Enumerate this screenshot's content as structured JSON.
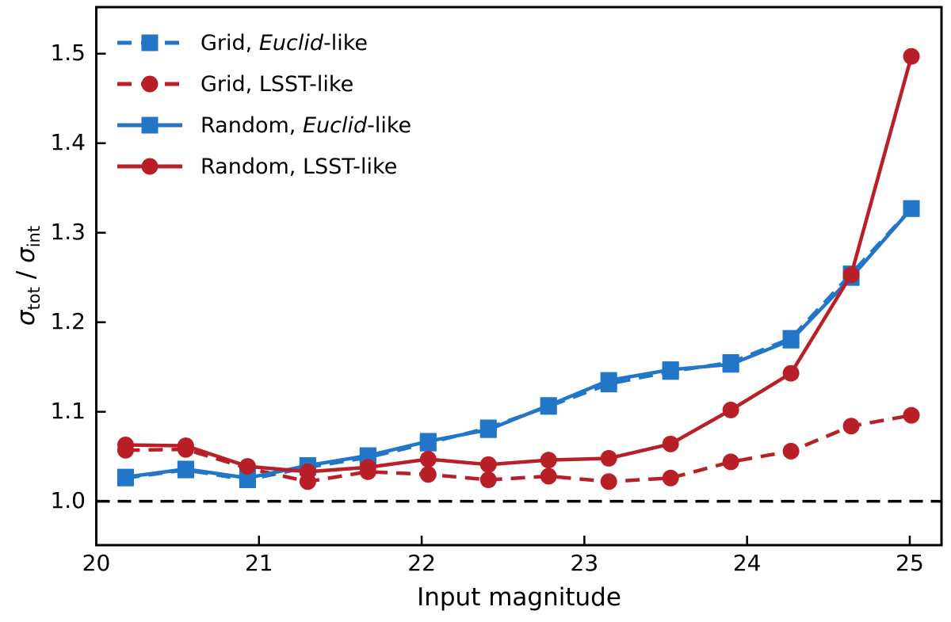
{
  "figure": {
    "background": "#ffffff",
    "text_color": "#000000"
  },
  "chart_data": {
    "type": "line",
    "title": "",
    "xlabel": "Input magnitude",
    "ylabel": "sigma_tot / sigma_int",
    "ylabel_parts": [
      {
        "text": "σ",
        "italic": true,
        "sub": false
      },
      {
        "text": "tot",
        "italic": false,
        "sub": true
      },
      {
        "text": " / ",
        "italic": false,
        "sub": false
      },
      {
        "text": "σ",
        "italic": true,
        "sub": false
      },
      {
        "text": "int",
        "italic": false,
        "sub": true
      }
    ],
    "xlim": [
      20.0,
      25.195
    ],
    "ylim": [
      0.951,
      1.552
    ],
    "xticks": [
      20,
      21,
      22,
      23,
      24,
      25
    ],
    "yticks": [
      1.0,
      1.1,
      1.2,
      1.3,
      1.4,
      1.5
    ],
    "xtick_labels": [
      "20",
      "21",
      "22",
      "23",
      "24",
      "25"
    ],
    "ytick_labels": [
      "1.0",
      "1.1",
      "1.2",
      "1.3",
      "1.4",
      "1.5"
    ],
    "grid": false,
    "legend_position": "upper left",
    "reference_line": {
      "y": 1.0,
      "color": "#000000",
      "style": "dashed"
    },
    "x": [
      20.18,
      20.55,
      20.93,
      21.3,
      21.67,
      22.04,
      22.41,
      22.78,
      23.15,
      23.53,
      23.9,
      24.27,
      24.64,
      25.01
    ],
    "series": [
      {
        "key": "grid-euclid",
        "name": "Grid, Euclid-like",
        "color": "#2176c8",
        "dash": true,
        "marker": "square",
        "values": [
          1.026,
          1.035,
          1.024,
          1.038,
          1.049,
          1.065,
          1.082,
          1.106,
          1.131,
          1.145,
          1.155,
          1.182,
          1.254,
          1.327
        ]
      },
      {
        "key": "grid-lsst",
        "name": "Grid, LSST-like",
        "color": "#b91f26",
        "dash": true,
        "marker": "circle",
        "values": [
          1.057,
          1.058,
          1.037,
          1.022,
          1.033,
          1.03,
          1.024,
          1.028,
          1.022,
          1.026,
          1.044,
          1.056,
          1.084,
          1.096
        ]
      },
      {
        "key": "random-euclid",
        "name": "Random, Euclid-like",
        "color": "#2176c8",
        "dash": false,
        "marker": "square",
        "values": [
          1.027,
          1.036,
          1.026,
          1.04,
          1.051,
          1.067,
          1.08,
          1.107,
          1.135,
          1.147,
          1.153,
          1.18,
          1.25,
          1.327
        ]
      },
      {
        "key": "random-lsst",
        "name": "Random, LSST-like",
        "color": "#b91f26",
        "dash": false,
        "marker": "circle",
        "values": [
          1.063,
          1.062,
          1.039,
          1.033,
          1.038,
          1.047,
          1.041,
          1.046,
          1.048,
          1.064,
          1.102,
          1.143,
          1.253,
          1.497
        ]
      }
    ],
    "legend": {
      "items": [
        {
          "key": "grid-euclid",
          "parts": [
            {
              "text": "Grid, "
            },
            {
              "text": "Euclid",
              "italic": true
            },
            {
              "text": "-like"
            }
          ]
        },
        {
          "key": "grid-lsst",
          "parts": [
            {
              "text": "Grid, LSST-like"
            }
          ]
        },
        {
          "key": "random-euclid",
          "parts": [
            {
              "text": "Random, "
            },
            {
              "text": "Euclid",
              "italic": true
            },
            {
              "text": "-like"
            }
          ]
        },
        {
          "key": "random-lsst",
          "parts": [
            {
              "text": "Random, LSST-like"
            }
          ]
        }
      ]
    }
  }
}
